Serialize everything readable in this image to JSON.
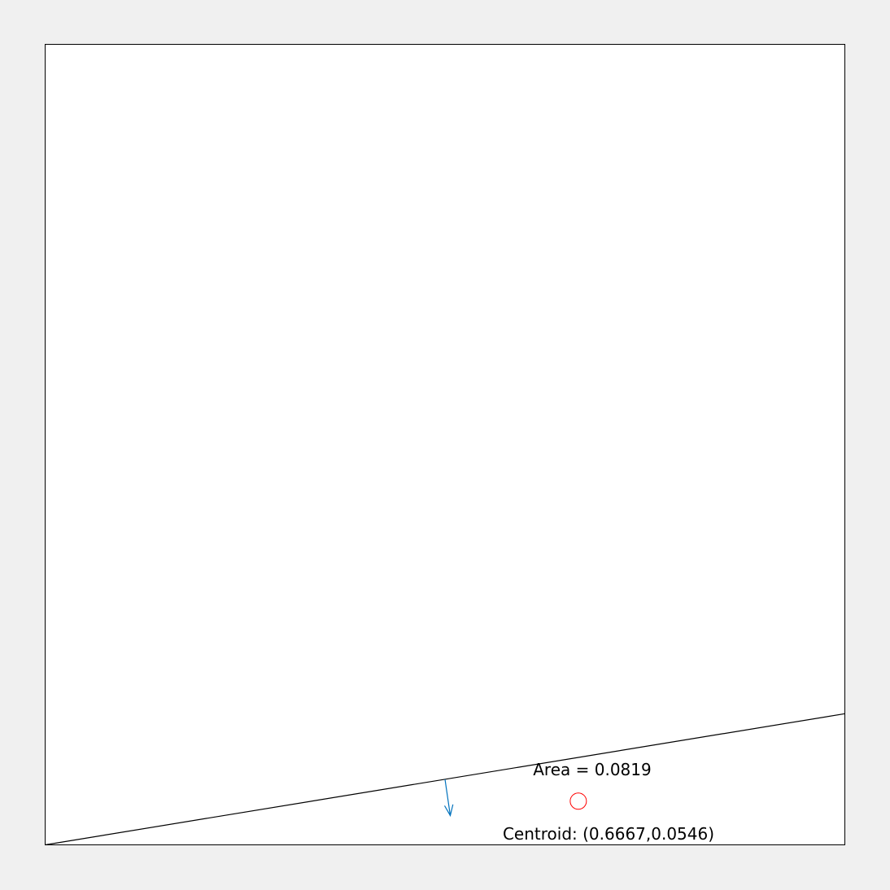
{
  "area_label": "Area = 0.0819",
  "centroid_label": "Centroid: (0.6667,0.0546)",
  "colors": {
    "background": "#f0f0f0",
    "axes_face": "#ffffff",
    "frame": "#000000",
    "edge_line": "#000000",
    "normal_arrow": "#0072bd",
    "centroid_marker": "#ff0000"
  },
  "chart_data": {
    "type": "scatter",
    "xlim": [
      0,
      1
    ],
    "ylim": [
      0,
      1
    ],
    "grid": false,
    "polygon": {
      "vertices": [
        [
          0,
          0
        ],
        [
          1,
          0
        ],
        [
          1,
          0.1638
        ]
      ]
    },
    "edge": {
      "from": [
        0,
        0
      ],
      "to": [
        1,
        0.1638
      ]
    },
    "normal_arrow": {
      "from": [
        0.5,
        0.0819
      ],
      "to": [
        0.5066,
        0.0366
      ]
    },
    "centroid": {
      "x": 0.6667,
      "y": 0.0546
    },
    "area": 0.0819
  }
}
